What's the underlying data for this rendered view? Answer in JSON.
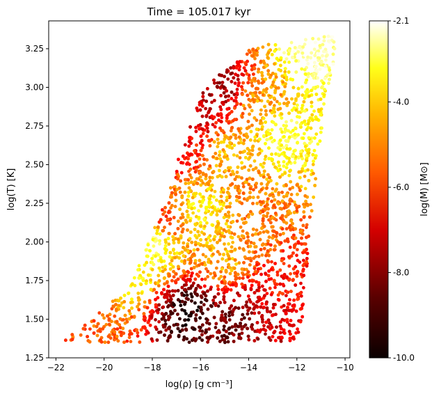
{
  "chart_data": {
    "type": "scatter",
    "title": "Time = 105.017 kyr",
    "xlabel": "log(ρ) [g cm⁻³]",
    "ylabel": "log(T) [K]",
    "xlim": [
      -22.3,
      -9.8
    ],
    "ylim": [
      1.25,
      3.43
    ],
    "x_ticks": [
      -22,
      -20,
      -18,
      -16,
      -14,
      -12,
      -10
    ],
    "x_tick_labels": [
      "−22",
      "−20",
      "−18",
      "−16",
      "−14",
      "−12",
      "−10"
    ],
    "y_ticks": [
      1.25,
      1.5,
      1.75,
      2.0,
      2.25,
      2.5,
      2.75,
      3.0,
      3.25
    ],
    "y_tick_labels": [
      "1.25",
      "1.50",
      "1.75",
      "2.00",
      "2.25",
      "2.50",
      "2.75",
      "3.00",
      "3.25"
    ],
    "grid": false,
    "colormap": "hot",
    "colorbar": {
      "label": "log(M) [M⊙]",
      "range": [
        -10.0,
        -2.1
      ],
      "ticks": [
        -10.0,
        -8.0,
        -6.0,
        -4.0,
        -2.1
      ],
      "tick_labels": [
        "-10.0",
        "-8.0",
        "-6.0",
        "-4.0",
        "-2.1"
      ]
    },
    "envelope": {
      "description": "dense particle cloud bounded by these data-space vertices",
      "vertices": [
        [
          -21.7,
          1.35
        ],
        [
          -21.5,
          1.38
        ],
        [
          -20.6,
          1.5
        ],
        [
          -19.8,
          1.6
        ],
        [
          -19.0,
          1.68
        ],
        [
          -18.4,
          1.9
        ],
        [
          -17.9,
          2.1
        ],
        [
          -17.4,
          2.28
        ],
        [
          -16.9,
          2.55
        ],
        [
          -16.4,
          2.78
        ],
        [
          -16.0,
          2.95
        ],
        [
          -15.2,
          3.1
        ],
        [
          -13.8,
          3.27
        ],
        [
          -12.0,
          3.3
        ],
        [
          -10.4,
          3.34
        ],
        [
          -10.4,
          3.22
        ],
        [
          -10.9,
          2.8
        ],
        [
          -11.3,
          2.3
        ],
        [
          -11.6,
          1.8
        ],
        [
          -11.8,
          1.45
        ],
        [
          -12.1,
          1.36
        ],
        [
          -12.3,
          1.35
        ]
      ]
    },
    "regions": [
      {
        "x": -14.5,
        "y": 1.48,
        "log_m": -8.8
      },
      {
        "x": -13.2,
        "y": 1.55,
        "log_m": -7.5
      },
      {
        "x": -12.6,
        "y": 1.7,
        "log_m": -6.8
      },
      {
        "x": -15.2,
        "y": 3.0,
        "log_m": -8.2
      },
      {
        "x": -16.0,
        "y": 2.8,
        "log_m": -7.6
      },
      {
        "x": -16.8,
        "y": 2.6,
        "log_m": -6.9
      },
      {
        "x": -17.5,
        "y": 2.15,
        "log_m": -6.3
      },
      {
        "x": -16.5,
        "y": 1.55,
        "log_m": -9.6
      },
      {
        "x": -20.6,
        "y": 1.5,
        "log_m": -6.0
      },
      {
        "x": -19.0,
        "y": 1.8,
        "log_m": -3.8
      },
      {
        "x": -18.0,
        "y": 2.0,
        "log_m": -3.4
      },
      {
        "x": -16.0,
        "y": 2.2,
        "log_m": -4.2
      },
      {
        "x": -14.8,
        "y": 2.6,
        "log_m": -4.8
      },
      {
        "x": -13.5,
        "y": 2.9,
        "log_m": -5.2
      },
      {
        "x": -11.3,
        "y": 3.28,
        "log_m": -2.6
      },
      {
        "x": -12.5,
        "y": 2.7,
        "log_m": -3.6
      },
      {
        "x": -15.0,
        "y": 1.9,
        "log_m": -5.0
      },
      {
        "x": -13.8,
        "y": 2.2,
        "log_m": -5.6
      }
    ]
  }
}
